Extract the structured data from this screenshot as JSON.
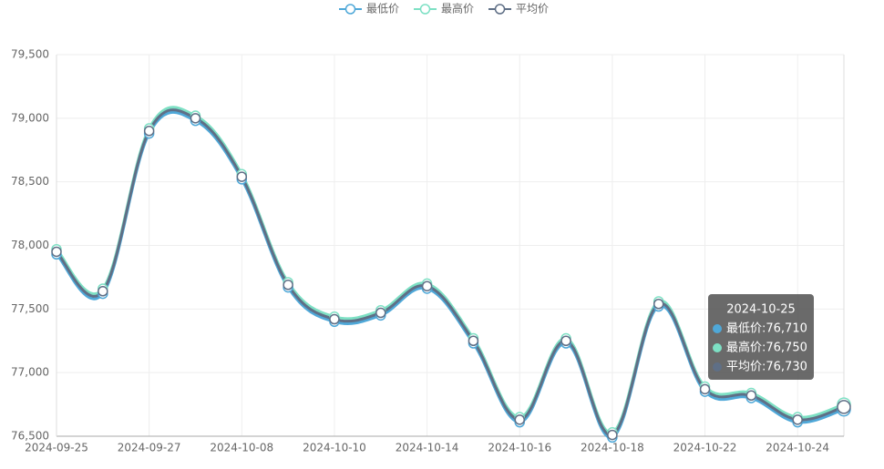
{
  "chart_data": {
    "type": "line",
    "categories": [
      "2024-09-25",
      null,
      "2024-09-27",
      null,
      "2024-10-08",
      null,
      "2024-10-10",
      null,
      "2024-10-14",
      null,
      "2024-10-16",
      null,
      "2024-10-18",
      null,
      "2024-10-22",
      null,
      "2024-10-24",
      null
    ],
    "series": [
      {
        "name": "最低价",
        "color": "#4fa8d8",
        "values": [
          77930,
          77620,
          78880,
          78980,
          78520,
          77670,
          77400,
          77450,
          77660,
          77230,
          76610,
          77230,
          76490,
          77520,
          76850,
          76800,
          76610,
          76710
        ]
      },
      {
        "name": "最高价",
        "color": "#7de0c4",
        "values": [
          77970,
          77660,
          78920,
          79020,
          78560,
          77710,
          77440,
          77490,
          77700,
          77270,
          76650,
          77270,
          76530,
          77560,
          76890,
          76840,
          76650,
          76750
        ]
      },
      {
        "name": "平均价",
        "color": "#5f6f86",
        "values": [
          77950,
          77640,
          78900,
          79000,
          78540,
          77690,
          77420,
          77470,
          77680,
          77250,
          76630,
          77250,
          76510,
          77540,
          76870,
          76820,
          76630,
          76730
        ]
      }
    ],
    "ylim": [
      76500,
      79500
    ],
    "yticks": [
      {
        "value": 76500,
        "label": "76,500"
      },
      {
        "value": 77000,
        "label": "77,000"
      },
      {
        "value": 77500,
        "label": "77,500"
      },
      {
        "value": 78000,
        "label": "78,000"
      },
      {
        "value": 78500,
        "label": "78,500"
      },
      {
        "value": 79000,
        "label": "79,000"
      },
      {
        "value": 79500,
        "label": "79,500"
      }
    ],
    "grid": true,
    "tooltip": {
      "title": "2024-10-25",
      "rows": [
        "最低价:76,710",
        "最高价:76,750",
        "平均价:76,730"
      ]
    }
  }
}
